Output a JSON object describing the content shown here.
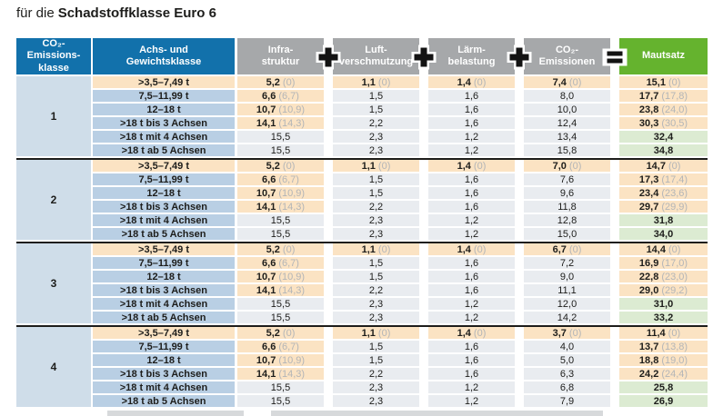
{
  "title": {
    "prefix": "für die",
    "bold": "Schadstoffklasse Euro 6"
  },
  "colors": {
    "header_blue": "#1271ab",
    "header_gray": "#a6a8aa",
    "header_green": "#65b32e",
    "highlight_peach": "#fbe3c3",
    "weight_cell_blue": "#b9cfe4",
    "class_cell_blue": "#cfdde9",
    "value_cell_gray": "#e9ecf0",
    "toll_cell_green": "#dcebd2",
    "paren_text_gray": "#b3b5b7"
  },
  "chart_data": {
    "type": "table",
    "title": "für die Schadstoffklasse Euro 6",
    "headers": {
      "class": [
        "CO₂-Emissions-",
        "klasse"
      ],
      "weight": [
        "Achs- und",
        "Gewichtsklasse"
      ],
      "infra": [
        "Infra-",
        "struktur"
      ],
      "air": [
        "Luft-",
        "verschmutzung"
      ],
      "noise": [
        "Lärm-",
        "belastung"
      ],
      "co2": [
        "CO₂-",
        "Emissionen"
      ],
      "toll": [
        "Mautsatz"
      ]
    },
    "operators": [
      "+",
      "+",
      "+",
      "="
    ],
    "weight_classes": [
      ">3,5–7,49 t",
      "7,5–11,99 t",
      "12–18 t",
      ">18 t bis 3 Achsen",
      ">18 t mit 4 Achsen",
      ">18 t ab 5 Achsen"
    ],
    "groups": [
      {
        "class_label": "1",
        "rows": [
          {
            "infra": {
              "v": "5,2",
              "p": "(0)"
            },
            "air": {
              "v": "1,1",
              "p": "(0)"
            },
            "noise": {
              "v": "1,4",
              "p": "(0)"
            },
            "co2": {
              "v": "7,4",
              "p": "(0)"
            },
            "toll": {
              "v": "15,1",
              "p": "(0)"
            }
          },
          {
            "infra": {
              "v": "6,6",
              "p": "(6,7)"
            },
            "air": {
              "v": "1,5"
            },
            "noise": {
              "v": "1,6"
            },
            "co2": {
              "v": "8,0"
            },
            "toll": {
              "v": "17,7",
              "p": "(17,8)"
            }
          },
          {
            "infra": {
              "v": "10,7",
              "p": "(10,9)"
            },
            "air": {
              "v": "1,5"
            },
            "noise": {
              "v": "1,6"
            },
            "co2": {
              "v": "10,0"
            },
            "toll": {
              "v": "23,8",
              "p": "(24,0)"
            }
          },
          {
            "infra": {
              "v": "14,1",
              "p": "(14,3)"
            },
            "air": {
              "v": "2,2"
            },
            "noise": {
              "v": "1,6"
            },
            "co2": {
              "v": "12,4"
            },
            "toll": {
              "v": "30,3",
              "p": "(30,5)"
            }
          },
          {
            "infra": {
              "v": "15,5"
            },
            "air": {
              "v": "2,3"
            },
            "noise": {
              "v": "1,2"
            },
            "co2": {
              "v": "13,4"
            },
            "toll": {
              "v": "32,4"
            }
          },
          {
            "infra": {
              "v": "15,5"
            },
            "air": {
              "v": "2,3"
            },
            "noise": {
              "v": "1,2"
            },
            "co2": {
              "v": "15,8"
            },
            "toll": {
              "v": "34,8"
            }
          }
        ]
      },
      {
        "class_label": "2",
        "rows": [
          {
            "infra": {
              "v": "5,2",
              "p": "(0)"
            },
            "air": {
              "v": "1,1",
              "p": "(0)"
            },
            "noise": {
              "v": "1,4",
              "p": "(0)"
            },
            "co2": {
              "v": "7,0",
              "p": "(0)"
            },
            "toll": {
              "v": "14,7",
              "p": "(0)"
            }
          },
          {
            "infra": {
              "v": "6,6",
              "p": "(6,7)"
            },
            "air": {
              "v": "1,5"
            },
            "noise": {
              "v": "1,6"
            },
            "co2": {
              "v": "7,6"
            },
            "toll": {
              "v": "17,3",
              "p": "(17,4)"
            }
          },
          {
            "infra": {
              "v": "10,7",
              "p": "(10,9)"
            },
            "air": {
              "v": "1,5"
            },
            "noise": {
              "v": "1,6"
            },
            "co2": {
              "v": "9,6"
            },
            "toll": {
              "v": "23,4",
              "p": "(23,6)"
            }
          },
          {
            "infra": {
              "v": "14,1",
              "p": "(14,3)"
            },
            "air": {
              "v": "2,2"
            },
            "noise": {
              "v": "1,6"
            },
            "co2": {
              "v": "11,8"
            },
            "toll": {
              "v": "29,7",
              "p": "(29,9)"
            }
          },
          {
            "infra": {
              "v": "15,5"
            },
            "air": {
              "v": "2,3"
            },
            "noise": {
              "v": "1,2"
            },
            "co2": {
              "v": "12,8"
            },
            "toll": {
              "v": "31,8"
            }
          },
          {
            "infra": {
              "v": "15,5"
            },
            "air": {
              "v": "2,3"
            },
            "noise": {
              "v": "1,2"
            },
            "co2": {
              "v": "15,0"
            },
            "toll": {
              "v": "34,0"
            }
          }
        ]
      },
      {
        "class_label": "3",
        "rows": [
          {
            "infra": {
              "v": "5,2",
              "p": "(0)"
            },
            "air": {
              "v": "1,1",
              "p": "(0)"
            },
            "noise": {
              "v": "1,4",
              "p": "(0)"
            },
            "co2": {
              "v": "6,7",
              "p": "(0)"
            },
            "toll": {
              "v": "14,4",
              "p": "(0)"
            }
          },
          {
            "infra": {
              "v": "6,6",
              "p": "(6,7)"
            },
            "air": {
              "v": "1,5"
            },
            "noise": {
              "v": "1,6"
            },
            "co2": {
              "v": "7,2"
            },
            "toll": {
              "v": "16,9",
              "p": "(17,0)"
            }
          },
          {
            "infra": {
              "v": "10,7",
              "p": "(10,9)"
            },
            "air": {
              "v": "1,5"
            },
            "noise": {
              "v": "1,6"
            },
            "co2": {
              "v": "9,0"
            },
            "toll": {
              "v": "22,8",
              "p": "(23,0)"
            }
          },
          {
            "infra": {
              "v": "14,1",
              "p": "(14,3)"
            },
            "air": {
              "v": "2,2"
            },
            "noise": {
              "v": "1,6"
            },
            "co2": {
              "v": "11,1"
            },
            "toll": {
              "v": "29,0",
              "p": "(29,2)"
            }
          },
          {
            "infra": {
              "v": "15,5"
            },
            "air": {
              "v": "2,3"
            },
            "noise": {
              "v": "1,2"
            },
            "co2": {
              "v": "12,0"
            },
            "toll": {
              "v": "31,0"
            }
          },
          {
            "infra": {
              "v": "15,5"
            },
            "air": {
              "v": "2,3"
            },
            "noise": {
              "v": "1,2"
            },
            "co2": {
              "v": "14,2"
            },
            "toll": {
              "v": "33,2"
            }
          }
        ]
      },
      {
        "class_label": "4",
        "rows": [
          {
            "infra": {
              "v": "5,2",
              "p": "(0)"
            },
            "air": {
              "v": "1,1",
              "p": "(0)"
            },
            "noise": {
              "v": "1,4",
              "p": "(0)"
            },
            "co2": {
              "v": "3,7",
              "p": "(0)"
            },
            "toll": {
              "v": "11,4",
              "p": "(0)"
            }
          },
          {
            "infra": {
              "v": "6,6",
              "p": "(6,7)"
            },
            "air": {
              "v": "1,5"
            },
            "noise": {
              "v": "1,6"
            },
            "co2": {
              "v": "4,0"
            },
            "toll": {
              "v": "13,7",
              "p": "(13,8)"
            }
          },
          {
            "infra": {
              "v": "10,7",
              "p": "(10,9)"
            },
            "air": {
              "v": "1,5"
            },
            "noise": {
              "v": "1,6"
            },
            "co2": {
              "v": "5,0"
            },
            "toll": {
              "v": "18,8",
              "p": "(19,0)"
            }
          },
          {
            "infra": {
              "v": "14,1",
              "p": "(14,3)"
            },
            "air": {
              "v": "2,2"
            },
            "noise": {
              "v": "1,6"
            },
            "co2": {
              "v": "6,3"
            },
            "toll": {
              "v": "24,2",
              "p": "(24,4)"
            }
          },
          {
            "infra": {
              "v": "15,5"
            },
            "air": {
              "v": "2,3"
            },
            "noise": {
              "v": "1,2"
            },
            "co2": {
              "v": "6,8"
            },
            "toll": {
              "v": "25,8"
            }
          },
          {
            "infra": {
              "v": "15,5"
            },
            "air": {
              "v": "2,3"
            },
            "noise": {
              "v": "1,2"
            },
            "co2": {
              "v": "7,9"
            },
            "toll": {
              "v": "26,9"
            }
          }
        ]
      }
    ]
  }
}
